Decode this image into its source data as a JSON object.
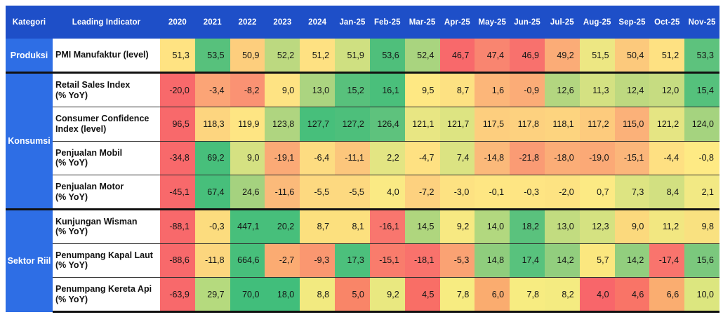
{
  "header": {
    "category_label": "Kategori",
    "indicator_label": "Leading Indicator"
  },
  "colors": {
    "header_bg": "#1E4FC8",
    "category_bg": "#2E6EE5",
    "header_text": "#FFFFFF",
    "grid_line": "#2F2F2F",
    "group_line": "#111111",
    "scale_low": "#F8696B",
    "scale_mid": "#FFEB84",
    "scale_high": "#41BE7B"
  },
  "chart_data": {
    "type": "heatmap",
    "columns": [
      "2020",
      "2021",
      "2022",
      "2023",
      "2024",
      "Jan-25",
      "Feb-25",
      "Mar-25",
      "Apr-25",
      "May-25",
      "Jun-25",
      "Jul-25",
      "Aug-25",
      "Sep-25",
      "Oct-25",
      "Nov-25"
    ],
    "groups": [
      {
        "label": "Produksi",
        "rows": [
          {
            "indicator": "PMI Manufaktur (level)",
            "values": [
              51.3,
              53.5,
              50.9,
              52.2,
              51.2,
              51.9,
              53.6,
              52.4,
              46.7,
              47.4,
              46.9,
              49.2,
              51.5,
              50.4,
              51.2,
              53.3
            ],
            "colors": [
              "#FFE382",
              "#57C17C",
              "#FDCE7D",
              "#BCD980",
              "#FEE182",
              "#CFE081",
              "#4FBF7B",
              "#A9D47F",
              "#F8696B",
              "#F98570",
              "#F8716D",
              "#FBAC77",
              "#EDE783",
              "#FCC97C",
              "#FEE182",
              "#5DC27D"
            ]
          }
        ]
      },
      {
        "label": "Konsumsi",
        "rows": [
          {
            "indicator": "Retail Sales Index\n(% YoY)",
            "values": [
              -20.0,
              -3.4,
              -8.2,
              9.0,
              13.0,
              15.2,
              16.1,
              9.5,
              8.7,
              1.6,
              -0.9,
              12.6,
              11.3,
              12.4,
              12.0,
              15.4
            ],
            "colors": [
              "#F8696B",
              "#FBA476",
              "#FA9273",
              "#FEE383",
              "#ABD480",
              "#58C17C",
              "#4ABF7B",
              "#FEE883",
              "#FDE182",
              "#FCB679",
              "#FBAC77",
              "#B3D680",
              "#D4E182",
              "#BED980",
              "#C6DC81",
              "#55C17C"
            ]
          },
          {
            "indicator": "Consumer Confidence Index (level)",
            "values": [
              96.5,
              118.3,
              119.9,
              123.8,
              127.7,
              127.2,
              126.4,
              121.1,
              121.7,
              117.5,
              117.8,
              118.1,
              117.2,
              115.0,
              121.2,
              124.0
            ],
            "colors": [
              "#F8696B",
              "#FDD57F",
              "#FEE583",
              "#AFD580",
              "#47BF7B",
              "#4DBF7B",
              "#5EC27D",
              "#E8E683",
              "#DDE482",
              "#FDCE7E",
              "#FDD17F",
              "#FDD47F",
              "#FDCB7D",
              "#FBB179",
              "#E5E583",
              "#A5D37F"
            ]
          },
          {
            "indicator": "Penjualan Mobil\n(% YoY)",
            "values": [
              -34.8,
              69.2,
              9.0,
              -19.1,
              -6.4,
              -11.1,
              2.2,
              -4.7,
              7.4,
              -14.8,
              -21.8,
              -18.0,
              -19.0,
              -15.1,
              -4.4,
              -0.8
            ],
            "colors": [
              "#F8696B",
              "#47BF7B",
              "#D5E182",
              "#FBAA76",
              "#FDDC81",
              "#FCC67C",
              "#E3E583",
              "#FEE182",
              "#DBE382",
              "#FBB97A",
              "#FA9B74",
              "#FBAD77",
              "#FBA976",
              "#FBB67A",
              "#FEE082",
              "#FEEA84"
            ]
          },
          {
            "indicator": "Penjualan Motor\n(% YoY)",
            "values": [
              -45.1,
              67.4,
              24.6,
              -11.6,
              -5.5,
              -5.5,
              4.0,
              -7.2,
              -3.0,
              -0.1,
              -0.3,
              -2.0,
              0.7,
              7.3,
              8.4,
              2.1
            ],
            "colors": [
              "#F8696B",
              "#47BF7B",
              "#A5D27F",
              "#FBBA7A",
              "#FDD980",
              "#FDD980",
              "#FAEA84",
              "#FDD17F",
              "#FDE282",
              "#FEE683",
              "#FEE583",
              "#FDE382",
              "#FCEA84",
              "#DDE482",
              "#D2E081",
              "#F2E984"
            ]
          }
        ]
      },
      {
        "label": "Sektor Riil",
        "rows": [
          {
            "indicator": "Kunjungan Wisman\n(% YoY)",
            "values": [
              -88.1,
              -0.3,
              447.1,
              20.2,
              8.7,
              8.1,
              -16.1,
              14.5,
              9.2,
              14.0,
              18.2,
              13.0,
              12.3,
              9.0,
              11.2,
              9.8
            ],
            "colors": [
              "#F8696B",
              "#FCDC7E",
              "#47BF7B",
              "#47BF7B",
              "#FCE07E",
              "#FCE07E",
              "#F9766E",
              "#AFD67E",
              "#F7E982",
              "#B2D87F",
              "#5AC27D",
              "#C2DC80",
              "#D5E281",
              "#FBD97D",
              "#F2E781",
              "#F9E180"
            ]
          },
          {
            "indicator": "Penumpang Kapal Laut\n(% YoY)",
            "values": [
              -88.6,
              -11.8,
              664.6,
              -2.7,
              -9.3,
              17.3,
              -15.1,
              -18.1,
              -5.3,
              14.8,
              17.4,
              14.2,
              5.7,
              14.2,
              -17.4,
              15.6
            ],
            "colors": [
              "#F8696B",
              "#FCD67E",
              "#47BF7B",
              "#FBAB72",
              "#FA9770",
              "#4CC07C",
              "#F97C6C",
              "#F9726C",
              "#FAA273",
              "#8FCD7D",
              "#58C27D",
              "#92CE7E",
              "#FBE77F",
              "#92CE7E",
              "#F9746D",
              "#7BC87D"
            ]
          },
          {
            "indicator": "Penumpang Kereta Api\n(% YoY)",
            "values": [
              -63.9,
              29.7,
              70.0,
              18.0,
              8.8,
              5.0,
              9.2,
              4.5,
              7.8,
              6.0,
              7.8,
              8.2,
              4.0,
              4.6,
              6.6,
              10.0
            ],
            "colors": [
              "#F8696B",
              "#B5DA7E",
              "#41BE7B",
              "#41BE7B",
              "#F2EA80",
              "#F98568",
              "#E9E880",
              "#F96E66",
              "#F7EC81",
              "#FAAC6F",
              "#F7EC81",
              "#F4EB81",
              "#F8666A",
              "#F97467",
              "#FAAD70",
              "#DCE67F"
            ]
          }
        ]
      }
    ]
  }
}
